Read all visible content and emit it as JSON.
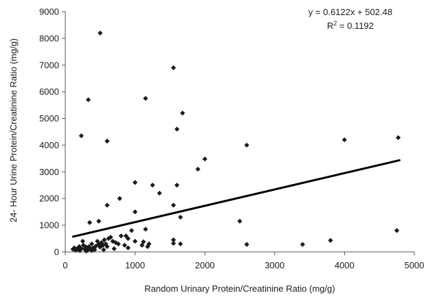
{
  "chart_data": {
    "type": "scatter",
    "title": "",
    "xlabel": "Random Urinary Protein/Creatinine Ratio (mg/g)",
    "ylabel": "24- Hour Urine Protein/Creatinine Ratio (mg/g)",
    "xlim": [
      0,
      5000
    ],
    "ylim": [
      0,
      9000
    ],
    "x_ticks": [
      "0",
      "1000",
      "2000",
      "3000",
      "4000",
      "5000"
    ],
    "y_ticks": [
      "0",
      "1000",
      "2000",
      "3000",
      "4000",
      "5000",
      "6000",
      "7000",
      "8000",
      "9000"
    ],
    "grid": false,
    "legend": "none",
    "marker": "diamond",
    "marker_color": "#1a1a1a",
    "trendline": {
      "slope": 0.6122,
      "intercept": 502.48,
      "x_range": [
        100,
        4800
      ],
      "equation_text": "y = 0.6122x + 502.48",
      "r2_label": "R",
      "r2_superscript": "2",
      "r2_value": " = 0.1192"
    },
    "points": [
      [
        500,
        8200
      ],
      [
        1550,
        6900
      ],
      [
        330,
        5700
      ],
      [
        1150,
        5750
      ],
      [
        1680,
        5200
      ],
      [
        600,
        4150
      ],
      [
        1600,
        4600
      ],
      [
        230,
        4350
      ],
      [
        4770,
        4280
      ],
      [
        4000,
        4200
      ],
      [
        2600,
        4000
      ],
      [
        2000,
        3480
      ],
      [
        1900,
        3100
      ],
      [
        1000,
        2600
      ],
      [
        1250,
        2500
      ],
      [
        1600,
        2500
      ],
      [
        1350,
        2200
      ],
      [
        780,
        2000
      ],
      [
        600,
        1750
      ],
      [
        1550,
        1750
      ],
      [
        1000,
        1500
      ],
      [
        1650,
        1300
      ],
      [
        350,
        1100
      ],
      [
        480,
        1150
      ],
      [
        2500,
        1150
      ],
      [
        4750,
        800
      ],
      [
        1150,
        850
      ],
      [
        950,
        800
      ],
      [
        870,
        600
      ],
      [
        800,
        600
      ],
      [
        900,
        500
      ],
      [
        1550,
        450
      ],
      [
        3800,
        430
      ],
      [
        1000,
        400
      ],
      [
        1120,
        380
      ],
      [
        1200,
        300
      ],
      [
        1650,
        300
      ],
      [
        1550,
        320
      ],
      [
        2600,
        280
      ],
      [
        3400,
        280
      ],
      [
        110,
        100
      ],
      [
        130,
        150
      ],
      [
        150,
        60
      ],
      [
        170,
        120
      ],
      [
        190,
        80
      ],
      [
        200,
        200
      ],
      [
        210,
        50
      ],
      [
        230,
        130
      ],
      [
        250,
        400
      ],
      [
        260,
        250
      ],
      [
        280,
        100
      ],
      [
        300,
        180
      ],
      [
        320,
        60
      ],
      [
        340,
        200
      ],
      [
        360,
        120
      ],
      [
        380,
        300
      ],
      [
        400,
        150
      ],
      [
        420,
        80
      ],
      [
        440,
        220
      ],
      [
        460,
        400
      ],
      [
        480,
        280
      ],
      [
        500,
        180
      ],
      [
        520,
        350
      ],
      [
        540,
        250
      ],
      [
        560,
        450
      ],
      [
        580,
        300
      ],
      [
        600,
        200
      ],
      [
        620,
        500
      ],
      [
        650,
        550
      ],
      [
        680,
        400
      ],
      [
        720,
        350
      ],
      [
        760,
        300
      ],
      [
        850,
        250
      ],
      [
        900,
        150
      ],
      [
        1100,
        250
      ],
      [
        1180,
        200
      ],
      [
        700,
        120
      ],
      [
        550,
        80
      ],
      [
        380,
        50
      ],
      [
        300,
        30
      ]
    ]
  }
}
